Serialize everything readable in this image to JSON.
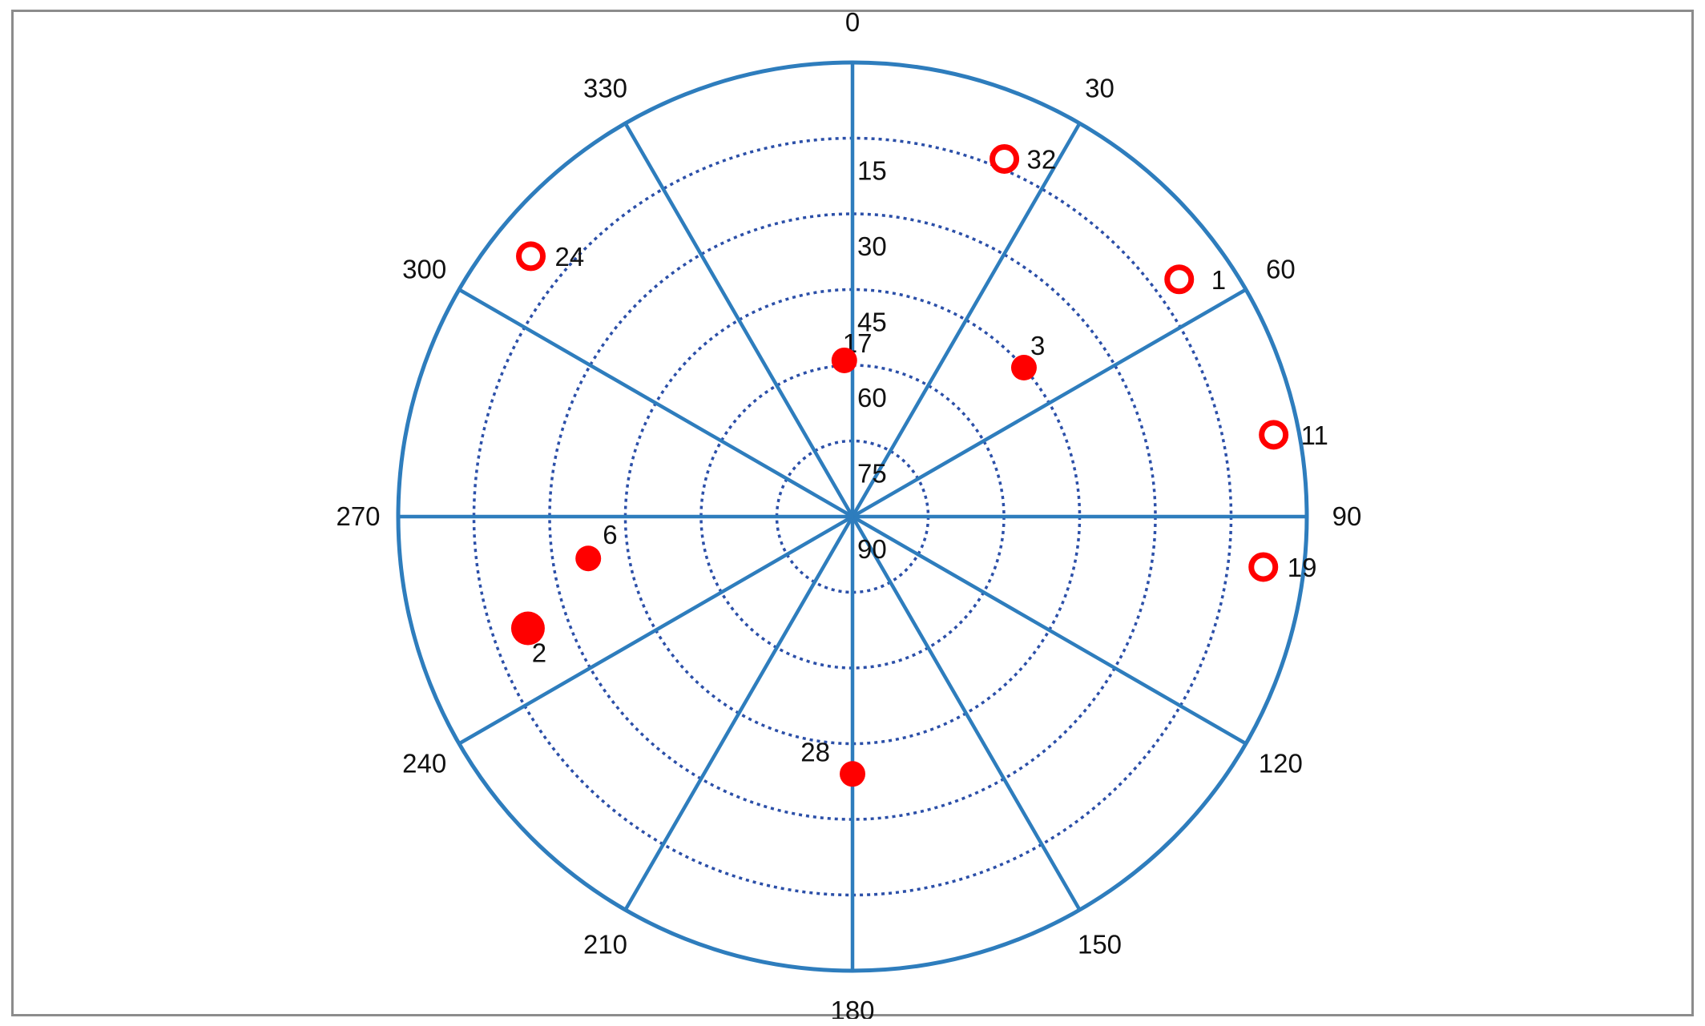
{
  "chart_data": {
    "type": "scatter",
    "projection": "polar",
    "title": "",
    "angle_direction": "clockwise",
    "angle_zero": "top",
    "angle_tick_labels": [
      "0",
      "30",
      "60",
      "90",
      "120",
      "150",
      "180",
      "210",
      "240",
      "270",
      "300",
      "330"
    ],
    "radial_axis": {
      "tick_labels": [
        "15",
        "30",
        "45",
        "60",
        "75",
        "90"
      ],
      "range": [
        0,
        90
      ],
      "direction": "90 at center, 0 at outer edge",
      "grid_style": "dotted"
    },
    "colors": {
      "grid": "#2e7dbd",
      "rings": "#2b4fa8",
      "points": "#ff0000"
    },
    "series": [
      {
        "style": "filled",
        "points": [
          {
            "label": "17",
            "azimuth": 357,
            "elevation": 59
          },
          {
            "label": "3",
            "azimuth": 49,
            "elevation": 45
          },
          {
            "label": "6",
            "azimuth": 261,
            "elevation": 37
          },
          {
            "label": "2",
            "azimuth": 251,
            "elevation": 22
          },
          {
            "label": "28",
            "azimuth": 180,
            "elevation": 39
          }
        ]
      },
      {
        "style": "open",
        "points": [
          {
            "label": "32",
            "azimuth": 23,
            "elevation": 13
          },
          {
            "label": "1",
            "azimuth": 54,
            "elevation": 10
          },
          {
            "label": "11",
            "azimuth": 79,
            "elevation": 5
          },
          {
            "label": "19",
            "azimuth": 97,
            "elevation": 8
          },
          {
            "label": "24",
            "azimuth": 309,
            "elevation": 8
          }
        ]
      }
    ]
  }
}
